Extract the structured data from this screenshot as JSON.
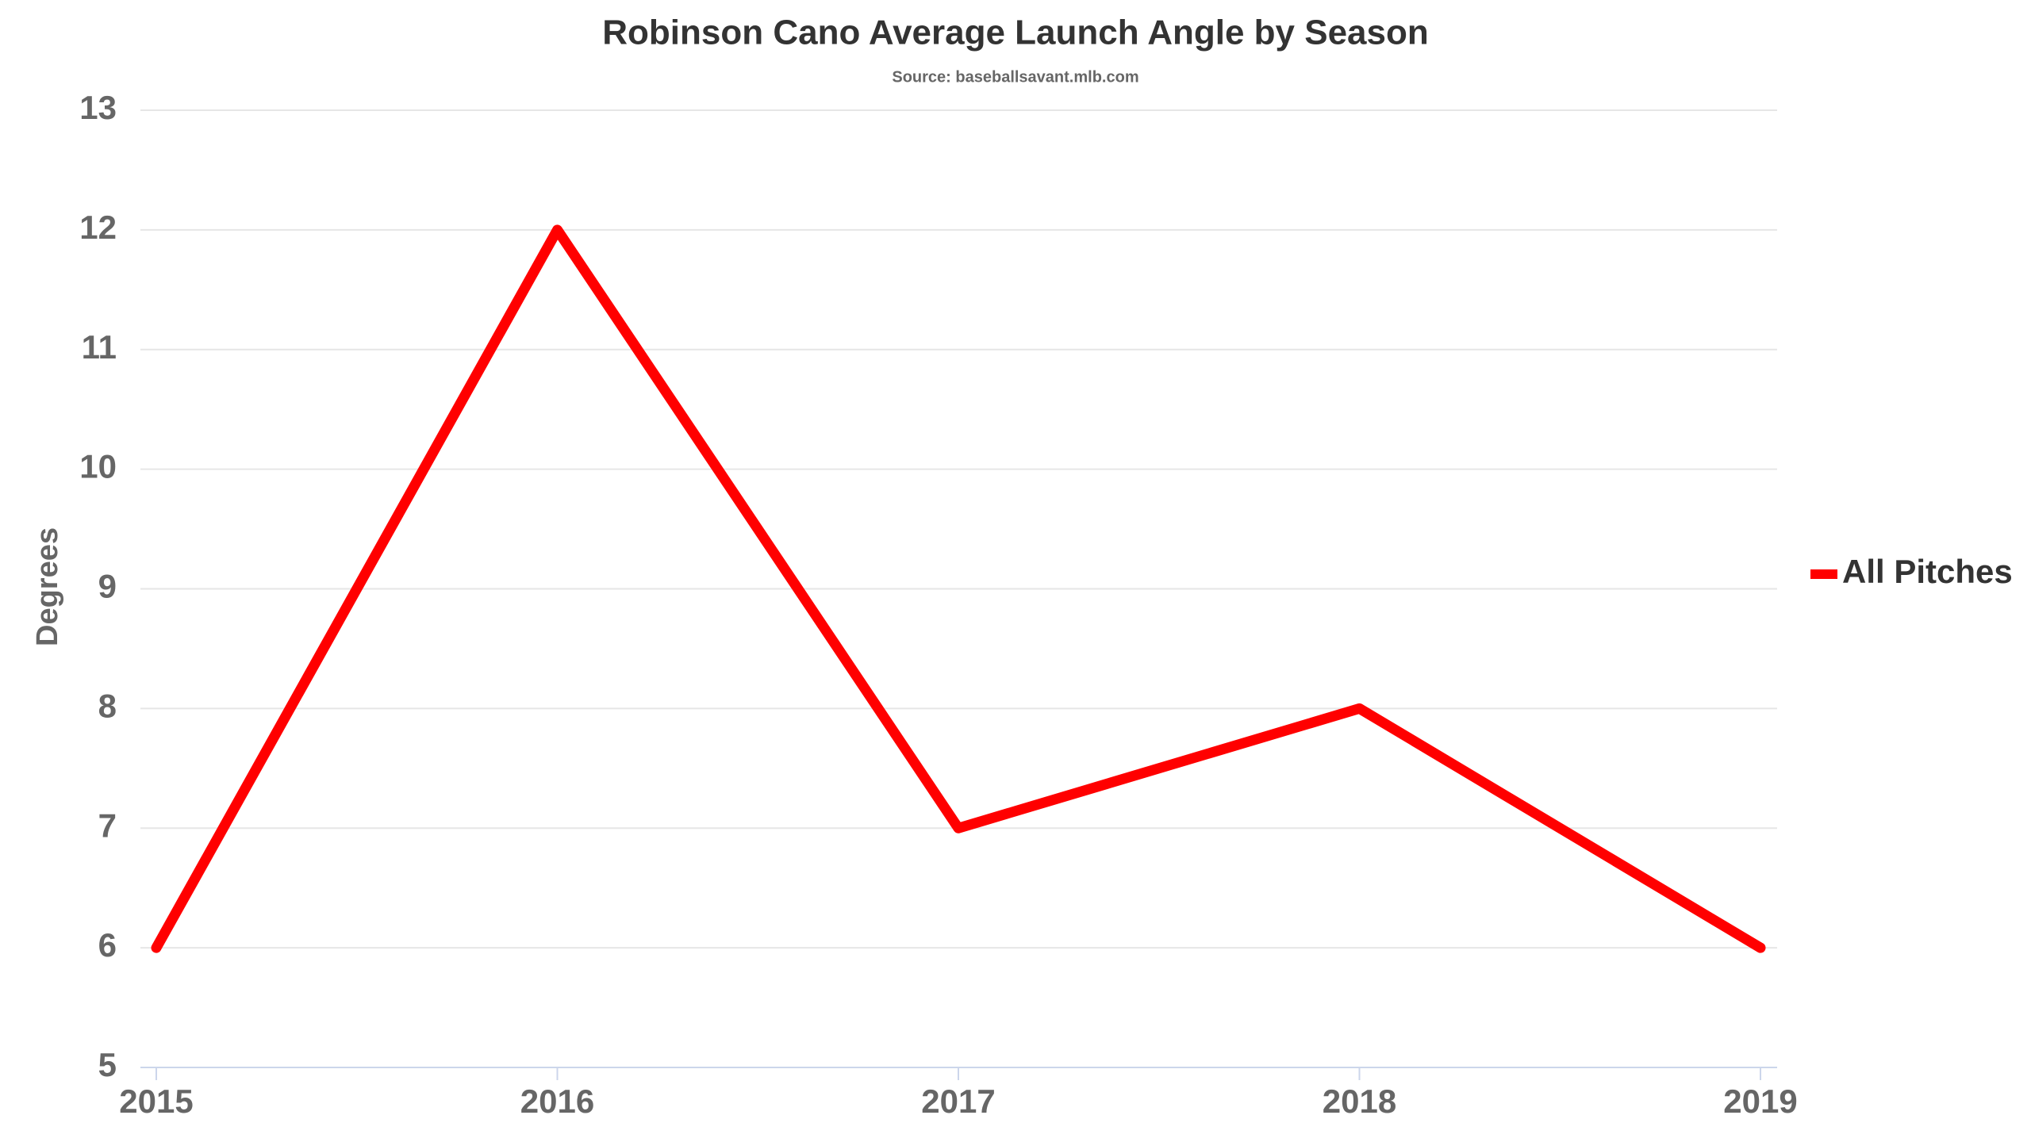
{
  "chart_data": {
    "type": "line",
    "title": "Robinson Cano Average Launch Angle by Season",
    "subtitle": "Source: baseballsavant.mlb.com",
    "y_label": "Degrees",
    "categories": [
      "2015",
      "2016",
      "2017",
      "2018",
      "2019"
    ],
    "series": [
      {
        "name": "All Pitches",
        "color": "#ff0000",
        "values": [
          6,
          12,
          7,
          8,
          6
        ]
      }
    ],
    "ylim": [
      5,
      13
    ],
    "yticks": [
      5,
      6,
      7,
      8,
      9,
      10,
      11,
      12,
      13
    ],
    "grid": true,
    "legend": "right"
  }
}
